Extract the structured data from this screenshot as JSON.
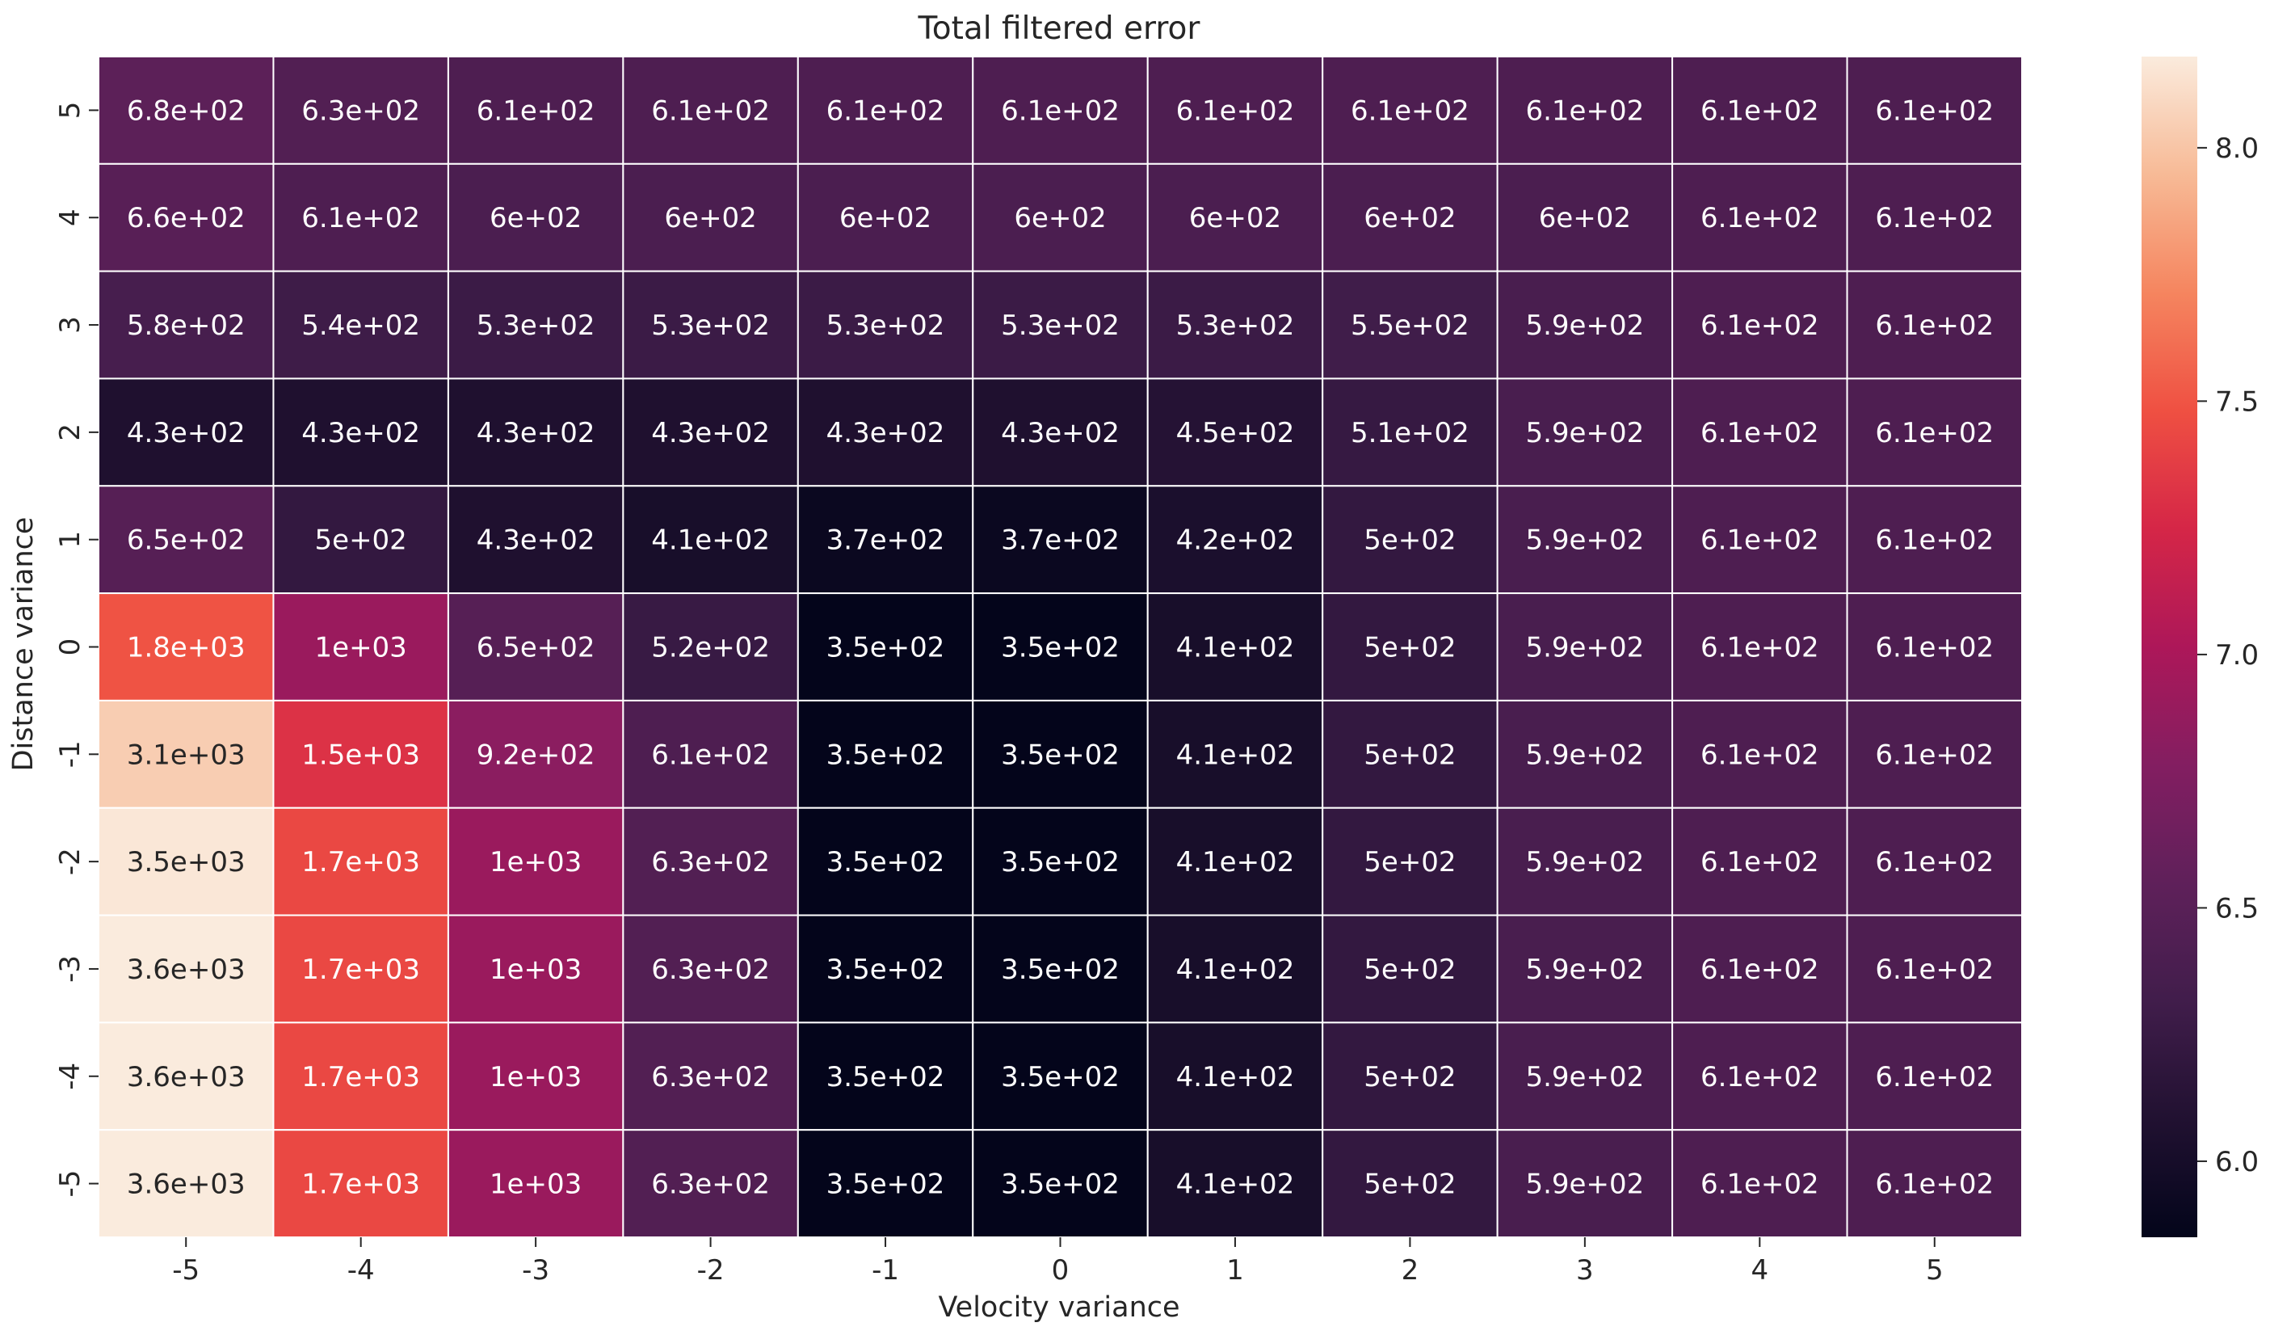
{
  "chart_data": {
    "type": "heatmap",
    "title": "Total filtered error",
    "xlabel": "Velocity variance",
    "ylabel": "Distance variance",
    "x": [
      "-5",
      "-4",
      "-3",
      "-2",
      "-1",
      "0",
      "1",
      "2",
      "3",
      "4",
      "5"
    ],
    "y": [
      "5",
      "4",
      "3",
      "2",
      "1",
      "0",
      "-1",
      "-2",
      "-3",
      "-4",
      "-5"
    ],
    "values": [
      [
        680,
        630,
        610,
        610,
        610,
        610,
        610,
        610,
        610,
        610,
        610
      ],
      [
        660,
        610,
        600,
        600,
        600,
        600,
        600,
        600,
        600,
        610,
        610
      ],
      [
        580,
        540,
        530,
        530,
        530,
        530,
        530,
        550,
        590,
        610,
        610
      ],
      [
        430,
        430,
        430,
        430,
        430,
        430,
        450,
        510,
        590,
        610,
        610
      ],
      [
        650,
        500,
        430,
        410,
        370,
        370,
        420,
        500,
        590,
        610,
        610
      ],
      [
        1800,
        1000,
        650,
        520,
        350,
        350,
        410,
        500,
        590,
        610,
        610
      ],
      [
        3100,
        1500,
        920,
        610,
        350,
        350,
        410,
        500,
        590,
        610,
        610
      ],
      [
        3500,
        1700,
        1000,
        630,
        350,
        350,
        410,
        500,
        590,
        610,
        610
      ],
      [
        3600,
        1700,
        1000,
        630,
        350,
        350,
        410,
        500,
        590,
        610,
        610
      ],
      [
        3600,
        1700,
        1000,
        630,
        350,
        350,
        410,
        500,
        590,
        610,
        610
      ],
      [
        3600,
        1700,
        1000,
        630,
        350,
        350,
        410,
        500,
        590,
        610,
        610
      ]
    ],
    "annotations": [
      [
        "6.8e+02",
        "6.3e+02",
        "6.1e+02",
        "6.1e+02",
        "6.1e+02",
        "6.1e+02",
        "6.1e+02",
        "6.1e+02",
        "6.1e+02",
        "6.1e+02",
        "6.1e+02"
      ],
      [
        "6.6e+02",
        "6.1e+02",
        "6e+02",
        "6e+02",
        "6e+02",
        "6e+02",
        "6e+02",
        "6e+02",
        "6e+02",
        "6.1e+02",
        "6.1e+02"
      ],
      [
        "5.8e+02",
        "5.4e+02",
        "5.3e+02",
        "5.3e+02",
        "5.3e+02",
        "5.3e+02",
        "5.3e+02",
        "5.5e+02",
        "5.9e+02",
        "6.1e+02",
        "6.1e+02"
      ],
      [
        "4.3e+02",
        "4.3e+02",
        "4.3e+02",
        "4.3e+02",
        "4.3e+02",
        "4.3e+02",
        "4.5e+02",
        "5.1e+02",
        "5.9e+02",
        "6.1e+02",
        "6.1e+02"
      ],
      [
        "6.5e+02",
        "5e+02",
        "4.3e+02",
        "4.1e+02",
        "3.7e+02",
        "3.7e+02",
        "4.2e+02",
        "5e+02",
        "5.9e+02",
        "6.1e+02",
        "6.1e+02"
      ],
      [
        "1.8e+03",
        "1e+03",
        "6.5e+02",
        "5.2e+02",
        "3.5e+02",
        "3.5e+02",
        "4.1e+02",
        "5e+02",
        "5.9e+02",
        "6.1e+02",
        "6.1e+02"
      ],
      [
        "3.1e+03",
        "1.5e+03",
        "9.2e+02",
        "6.1e+02",
        "3.5e+02",
        "3.5e+02",
        "4.1e+02",
        "5e+02",
        "5.9e+02",
        "6.1e+02",
        "6.1e+02"
      ],
      [
        "3.5e+03",
        "1.7e+03",
        "1e+03",
        "6.3e+02",
        "3.5e+02",
        "3.5e+02",
        "4.1e+02",
        "5e+02",
        "5.9e+02",
        "6.1e+02",
        "6.1e+02"
      ],
      [
        "3.6e+03",
        "1.7e+03",
        "1e+03",
        "6.3e+02",
        "3.5e+02",
        "3.5e+02",
        "4.1e+02",
        "5e+02",
        "5.9e+02",
        "6.1e+02",
        "6.1e+02"
      ],
      [
        "3.6e+03",
        "1.7e+03",
        "1e+03",
        "6.3e+02",
        "3.5e+02",
        "3.5e+02",
        "4.1e+02",
        "5e+02",
        "5.9e+02",
        "6.1e+02",
        "6.1e+02"
      ],
      [
        "3.6e+03",
        "1.7e+03",
        "1e+03",
        "6.3e+02",
        "3.5e+02",
        "3.5e+02",
        "4.1e+02",
        "5e+02",
        "5.9e+02",
        "6.1e+02",
        "6.1e+02"
      ]
    ],
    "color_scale": "log",
    "colormap": "rocket",
    "colorbar": {
      "range": [
        5.85,
        8.18
      ],
      "ticks": [
        6.0,
        6.5,
        7.0,
        7.5,
        8.0
      ],
      "tick_labels": [
        "6.0",
        "6.5",
        "7.0",
        "7.5",
        "8.0"
      ]
    },
    "grid_line_color": "#ffffff",
    "legend": "colorbar-right"
  }
}
